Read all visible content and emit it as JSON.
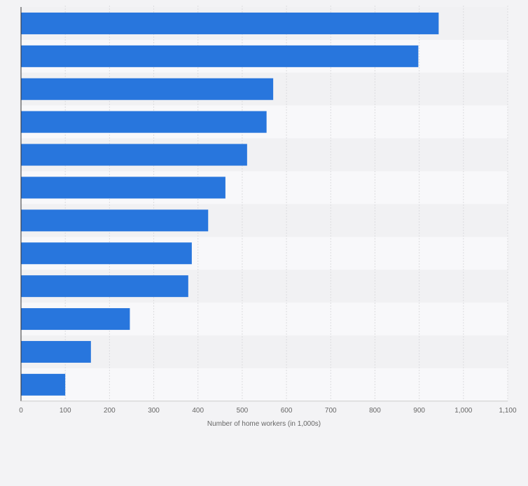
{
  "chart_data": {
    "type": "bar",
    "orientation": "horizontal",
    "title": "",
    "categories": [
      "",
      "",
      "",
      "",
      "",
      "",
      "",
      "",
      "",
      "",
      "",
      ""
    ],
    "values": [
      944,
      898,
      570,
      555,
      511,
      462,
      423,
      386,
      378,
      246,
      158,
      100
    ],
    "xlabel": "Number of home workers (in 1,000s)",
    "ylabel": "",
    "xlim": [
      0,
      1100
    ],
    "xticks": [
      0,
      100,
      200,
      300,
      400,
      500,
      600,
      700,
      800,
      900,
      1000,
      1100
    ],
    "xtick_labels": [
      "0",
      "100",
      "200",
      "300",
      "400",
      "500",
      "600",
      "700",
      "800",
      "900",
      "1,000",
      "1,100"
    ],
    "grid": true,
    "colors": {
      "bar": "#2876dd",
      "band_dark": "#f1f1f3",
      "band_light": "#f8f8fa",
      "grid": "#dcdcdf",
      "axis": "#333333",
      "tick_text": "#666666",
      "page_bg": "#f3f3f5"
    }
  }
}
